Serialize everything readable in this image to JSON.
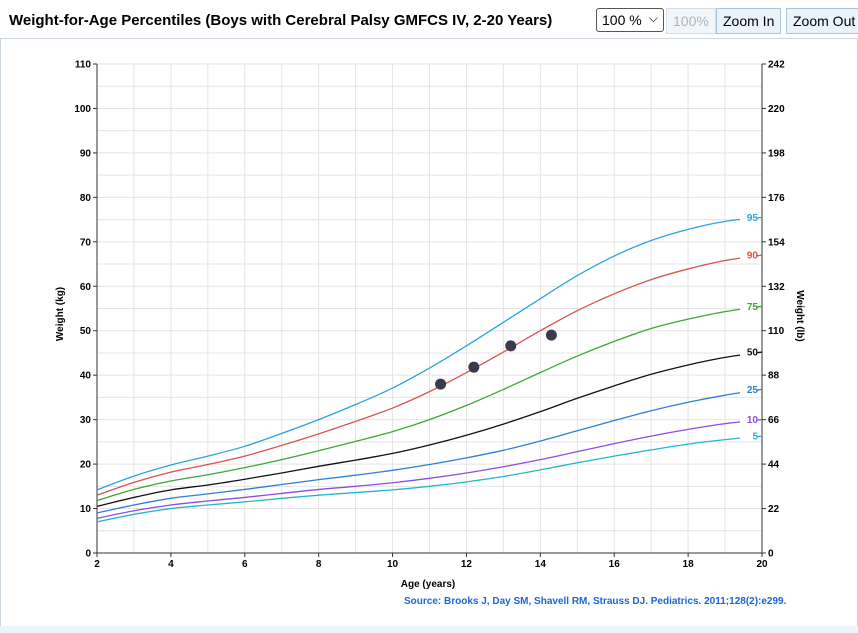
{
  "header": {
    "title": "Weight-for-Age Percentiles (Boys with Cerebral Palsy GMFCS IV, 2-20 Years)",
    "zoom_value": "100 %",
    "reset_label": "100%",
    "zoom_in_label": "Zoom In",
    "zoom_out_label": "Zoom Out"
  },
  "chart_data": {
    "type": "line",
    "title": "Weight-for-Age Percentiles (Boys with Cerebral Palsy GMFCS IV, 2-20 Years)",
    "xlabel": "Age (years)",
    "ylabel": "Weight (kg)",
    "y2label": "Weight (lb)",
    "xlim": [
      2,
      20
    ],
    "ylim": [
      0,
      110
    ],
    "y2lim": [
      0,
      242
    ],
    "xticks": [
      2,
      4,
      6,
      8,
      10,
      12,
      14,
      16,
      18,
      20
    ],
    "yticks": [
      0,
      10,
      20,
      30,
      40,
      50,
      60,
      70,
      80,
      90,
      100,
      110
    ],
    "y2ticks": [
      0,
      22,
      44,
      66,
      88,
      110,
      132,
      154,
      176,
      198,
      220,
      242
    ],
    "grid": true,
    "x": [
      2,
      3,
      4,
      5,
      6,
      7,
      8,
      9,
      10,
      11,
      12,
      13,
      14,
      15,
      16,
      17,
      18,
      19,
      20
    ],
    "series": [
      {
        "name": "5",
        "color": "#22b8c9",
        "values": [
          7.0,
          8.7,
          10.0,
          10.8,
          11.5,
          12.3,
          13.0,
          13.6,
          14.2,
          15.0,
          16.0,
          17.2,
          18.7,
          20.3,
          21.8,
          23.2,
          24.5,
          25.5,
          26.3
        ]
      },
      {
        "name": "10",
        "color": "#8a4fe0",
        "values": [
          7.8,
          9.5,
          10.8,
          11.7,
          12.5,
          13.4,
          14.3,
          15.0,
          15.8,
          16.8,
          18.0,
          19.4,
          21.0,
          22.8,
          24.6,
          26.3,
          27.8,
          29.1,
          30.0
        ]
      },
      {
        "name": "25",
        "color": "#2e7fd9",
        "values": [
          9.0,
          10.8,
          12.3,
          13.3,
          14.3,
          15.4,
          16.5,
          17.5,
          18.6,
          19.9,
          21.4,
          23.1,
          25.2,
          27.5,
          29.8,
          32.0,
          33.9,
          35.5,
          36.8
        ]
      },
      {
        "name": "50",
        "color": "#111111",
        "values": [
          10.5,
          12.5,
          14.2,
          15.3,
          16.6,
          18.0,
          19.5,
          20.9,
          22.4,
          24.3,
          26.5,
          29.0,
          31.8,
          34.8,
          37.6,
          40.2,
          42.3,
          44.0,
          45.2
        ]
      },
      {
        "name": "75",
        "color": "#3aa838",
        "values": [
          11.8,
          14.3,
          16.2,
          17.6,
          19.2,
          21.0,
          23.0,
          25.1,
          27.3,
          30.0,
          33.2,
          36.8,
          40.6,
          44.3,
          47.6,
          50.5,
          52.6,
          54.3,
          55.5
        ]
      },
      {
        "name": "90",
        "color": "#d9534f",
        "values": [
          13.0,
          15.9,
          18.2,
          19.9,
          21.8,
          24.2,
          26.8,
          29.6,
          32.6,
          36.3,
          40.6,
          45.2,
          50.0,
          54.5,
          58.3,
          61.5,
          63.9,
          65.8,
          67.0
        ]
      },
      {
        "name": "95",
        "color": "#2aa3de",
        "values": [
          14.2,
          17.3,
          19.8,
          21.8,
          24.0,
          26.9,
          30.0,
          33.4,
          37.1,
          41.6,
          46.6,
          51.9,
          57.2,
          62.4,
          66.8,
          70.3,
          72.8,
          74.6,
          75.5
        ]
      }
    ],
    "points": [
      {
        "x": 11.3,
        "y": 38.0
      },
      {
        "x": 12.2,
        "y": 41.8
      },
      {
        "x": 13.2,
        "y": 46.6
      },
      {
        "x": 14.3,
        "y": 49.0
      }
    ]
  },
  "source": "Source: Brooks J, Day SM, Shavell RM, Strauss DJ. Pediatrics. 2011;128(2):e299."
}
